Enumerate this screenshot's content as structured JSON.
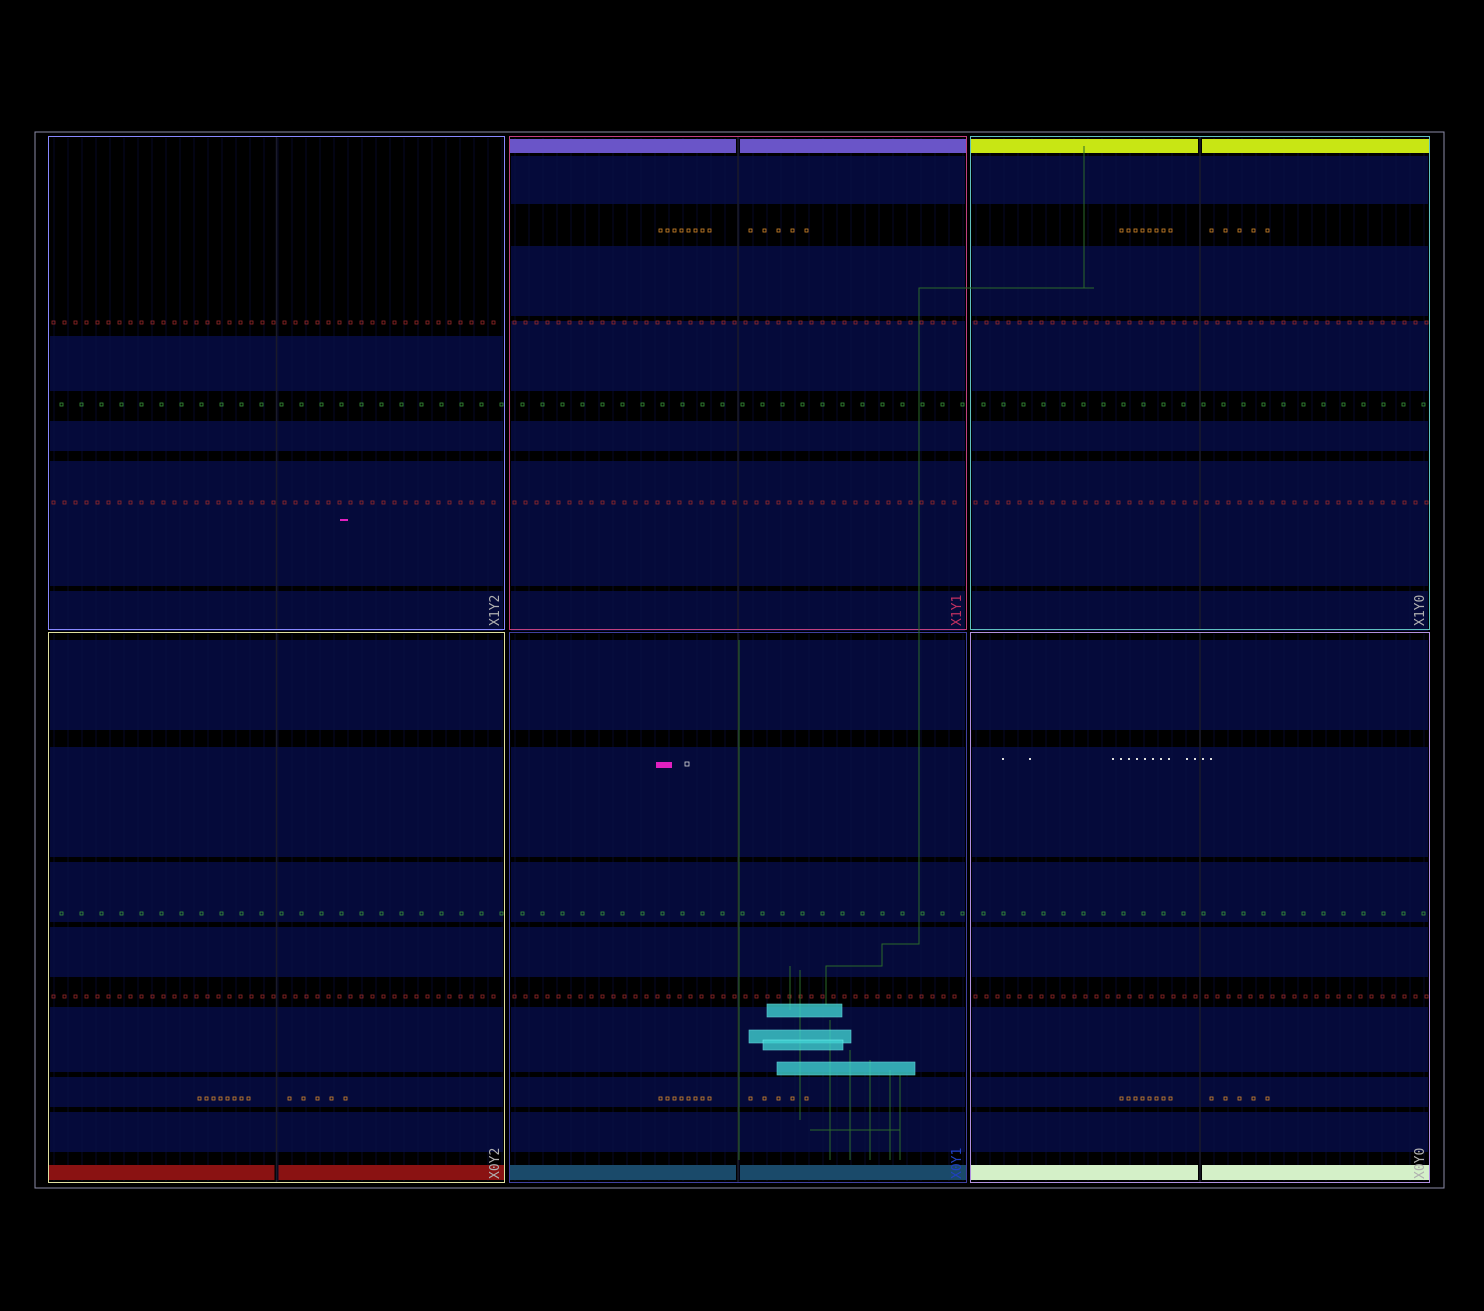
{
  "view": {
    "title": "",
    "background": "#000000",
    "outline_color": "#8c8ca8"
  },
  "colors": {
    "region_fill": "#050a3a",
    "row_dark": "#000000",
    "clb_col": "#0b0f4a",
    "io_orange": "#d98a2b",
    "io_green": "#3a9a3a",
    "io_red": "#9a2a2a",
    "placed_cell": "#3fd0d0",
    "net_green": "#2a6a2a",
    "magenta": "#e020c0"
  },
  "clock_regions": [
    {
      "label": "X1Y2",
      "label_color": "#b0b0b0",
      "border": "#8888ff",
      "top_bar": "",
      "bottom_bar": ""
    },
    {
      "label": "X1Y1",
      "label_color": "#c03060",
      "border": "#c04080",
      "top_bar": "#6a55c8",
      "bottom_bar": ""
    },
    {
      "label": "X1Y0",
      "label_color": "#b0b0b0",
      "border": "#60c0c0",
      "top_bar": "#c8e614",
      "bottom_bar": ""
    },
    {
      "label": "X0Y2",
      "label_color": "#b0b0b0",
      "border": "#e0e0a0",
      "top_bar": "",
      "bottom_bar": "#8a1212"
    },
    {
      "label": "X0Y1",
      "label_color": "#2040c0",
      "border": "#4040a0",
      "top_bar": "",
      "bottom_bar": "#1a4a6a"
    },
    {
      "label": "X0Y0",
      "label_color": "#b0b0b0",
      "border": "#b090e0",
      "top_bar": "",
      "bottom_bar": "#d4f0c8"
    }
  ]
}
